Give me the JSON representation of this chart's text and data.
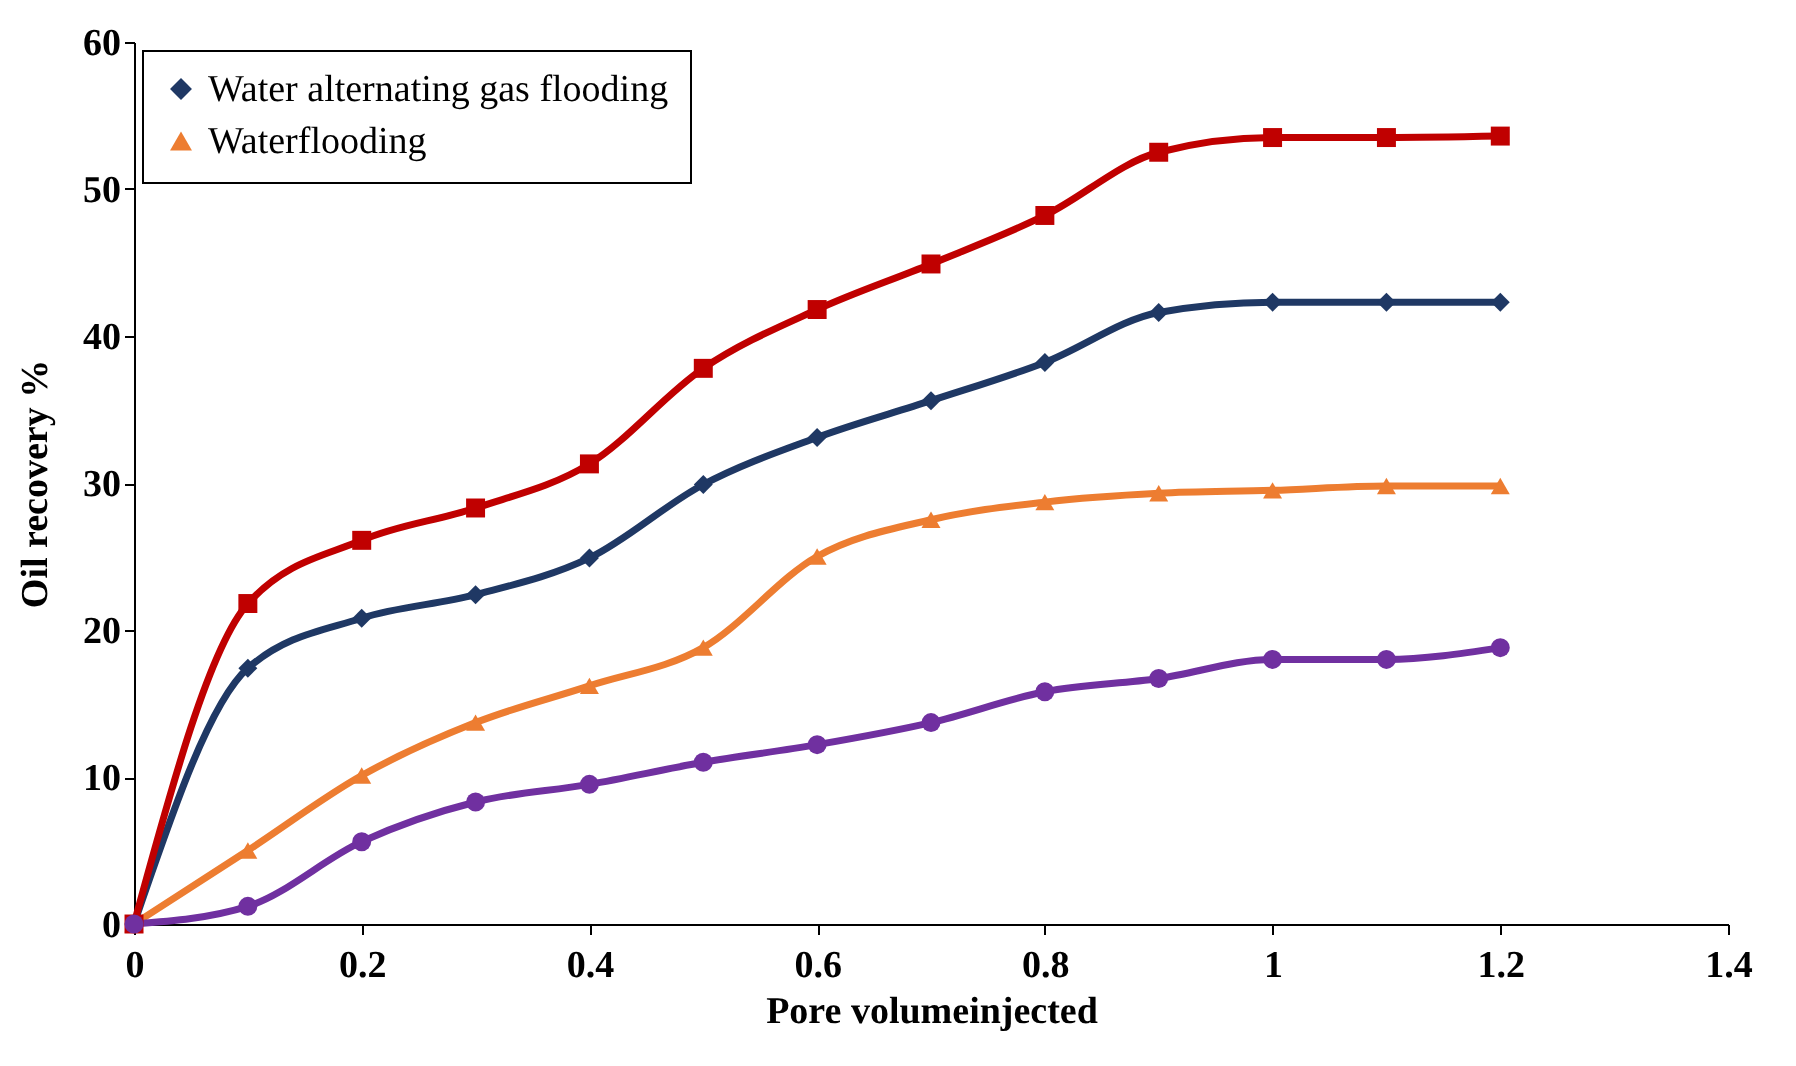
{
  "chart_data": {
    "type": "line",
    "xlabel": "Pore volumeinjected",
    "ylabel": "Oil recovery %",
    "x": [
      0,
      0.1,
      0.2,
      0.3,
      0.4,
      0.5,
      0.6,
      0.7,
      0.8,
      0.9,
      1.0,
      1.1,
      1.2
    ],
    "series": [
      {
        "name": "Water alternating gas flooding",
        "color": "#1f3864",
        "marker": "diamond",
        "values": [
          0,
          17.4,
          20.8,
          22.4,
          24.9,
          29.9,
          33.1,
          35.6,
          38.2,
          41.6,
          42.3,
          42.3,
          42.3
        ]
      },
      {
        "name": "Waterflooding",
        "color": "#ed7d31",
        "marker": "triangle",
        "values": [
          0,
          5.0,
          10.1,
          13.7,
          16.2,
          18.8,
          25.0,
          27.5,
          28.7,
          29.3,
          29.5,
          29.8,
          29.8
        ]
      },
      {
        "color": "#c00000",
        "marker": "square",
        "values": [
          0,
          21.8,
          26.1,
          28.3,
          31.3,
          37.8,
          41.8,
          44.9,
          48.2,
          52.5,
          53.5,
          53.5,
          53.6
        ]
      },
      {
        "color": "#7030a0",
        "marker": "circle",
        "values": [
          0,
          1.2,
          5.6,
          8.3,
          9.5,
          11.0,
          12.2,
          13.7,
          15.8,
          16.7,
          18.0,
          18.0,
          18.8
        ]
      }
    ],
    "xlim": [
      0,
      1.4
    ],
    "xticks": [
      0,
      0.2,
      0.4,
      0.6,
      0.8,
      1,
      1.2,
      1.4
    ],
    "ylim": [
      0,
      60
    ],
    "yticks": [
      0,
      10,
      20,
      30,
      40,
      50,
      60
    ],
    "grid": false,
    "legend": "top left",
    "line_style": "solid"
  }
}
